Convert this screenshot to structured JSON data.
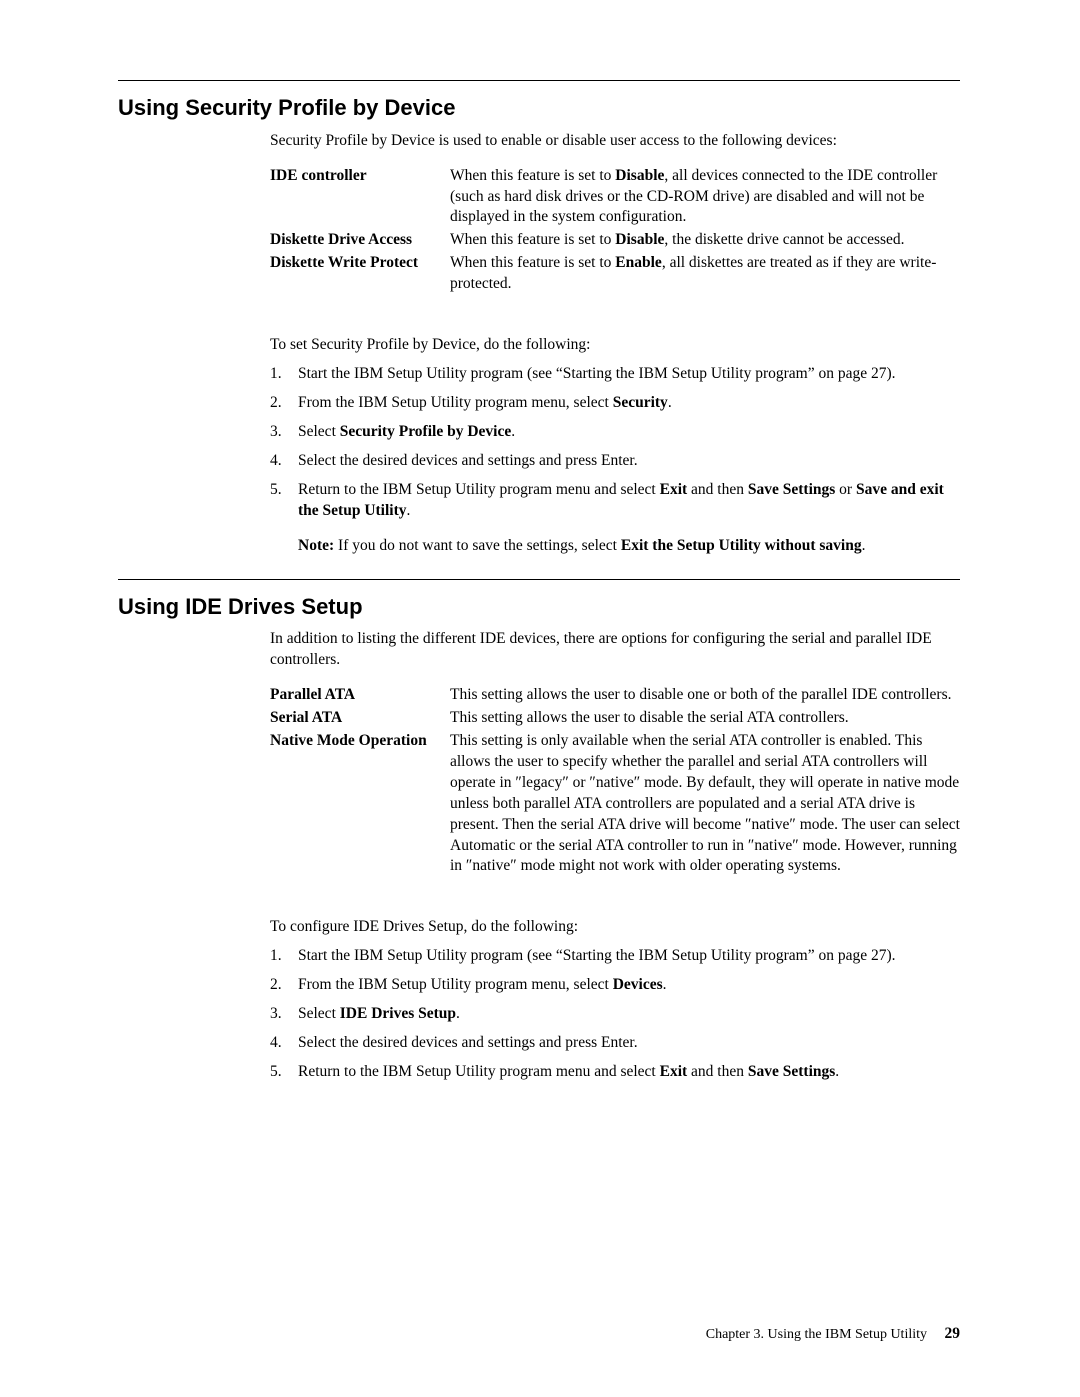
{
  "section1": {
    "heading": "Using Security Profile by Device",
    "intro": "Security Profile by Device is used to enable or disable user access to the following devices:",
    "defs": [
      {
        "term": "IDE controller",
        "desc_pre": "When this feature is set to ",
        "desc_bold": "Disable",
        "desc_post": ", all devices connected to the IDE controller (such as hard disk drives or the CD-ROM drive) are disabled and will not be displayed in the system configuration."
      },
      {
        "term": "Diskette Drive Access",
        "desc_pre": "When this feature is set to ",
        "desc_bold": "Disable",
        "desc_post": ", the diskette drive cannot be accessed."
      },
      {
        "term": "Diskette Write Protect",
        "desc_pre": "When this feature is set to ",
        "desc_bold": "Enable",
        "desc_post": ", all diskettes are treated as if they are write-protected."
      }
    ],
    "lead": "To set Security Profile by Device, do the following:",
    "steps": [
      {
        "text": "Start the IBM Setup Utility program (see “Starting the IBM Setup Utility program” on page 27)."
      },
      {
        "pre": "From the IBM Setup Utility program menu, select ",
        "bold": "Security",
        "post": "."
      },
      {
        "pre": "Select ",
        "bold": "Security Profile by Device",
        "post": "."
      },
      {
        "text": "Select the desired devices and settings and press Enter."
      },
      {
        "pre": "Return to the IBM Setup Utility program menu and select ",
        "bold": "Exit",
        "mid": " and then ",
        "bold2": "Save Settings",
        "mid2": " or ",
        "bold3": "Save and exit the Setup Utility",
        "post": "."
      }
    ],
    "note": {
      "label": "Note:",
      "pre": "If you do not want to save the settings, select ",
      "bold": "Exit the Setup Utility without saving",
      "post": "."
    }
  },
  "section2": {
    "heading": "Using IDE Drives Setup",
    "intro": "In addition to listing the different IDE devices, there are options for configuring the serial and parallel IDE controllers.",
    "defs": [
      {
        "term": "Parallel ATA",
        "desc": "This setting allows the user to disable one or both of the parallel IDE controllers."
      },
      {
        "term": "Serial ATA",
        "desc": "This setting allows the user to disable the serial ATA controllers."
      },
      {
        "term": "Native Mode Operation",
        "desc": "This setting is only available when the serial ATA controller is enabled. This allows the user to specify whether the parallel and serial ATA controllers will operate in ″legacy″ or ″native″ mode. By default, they will operate in native mode unless both parallel ATA controllers are populated and a serial ATA drive is present. Then the serial ATA drive will become ″native″ mode. The user can select Automatic or the serial ATA controller to run in ″native″ mode. However, running in ″native″ mode might not work with older operating systems."
      }
    ],
    "lead": "To configure IDE Drives Setup, do the following:",
    "steps": [
      {
        "text": "Start the IBM Setup Utility program (see “Starting the IBM Setup Utility program” on page 27)."
      },
      {
        "pre": "From the IBM Setup Utility program menu, select ",
        "bold": "Devices",
        "post": "."
      },
      {
        "pre": "Select ",
        "bold": "IDE Drives Setup",
        "post": "."
      },
      {
        "text": "Select the desired devices and settings and press Enter."
      },
      {
        "pre": "Return to the IBM Setup Utility program menu and select ",
        "bold": "Exit",
        "mid": " and then ",
        "bold2": "Save Settings",
        "post": "."
      }
    ]
  },
  "footer": {
    "chapter": "Chapter 3. Using the IBM Setup Utility",
    "page": "29"
  }
}
